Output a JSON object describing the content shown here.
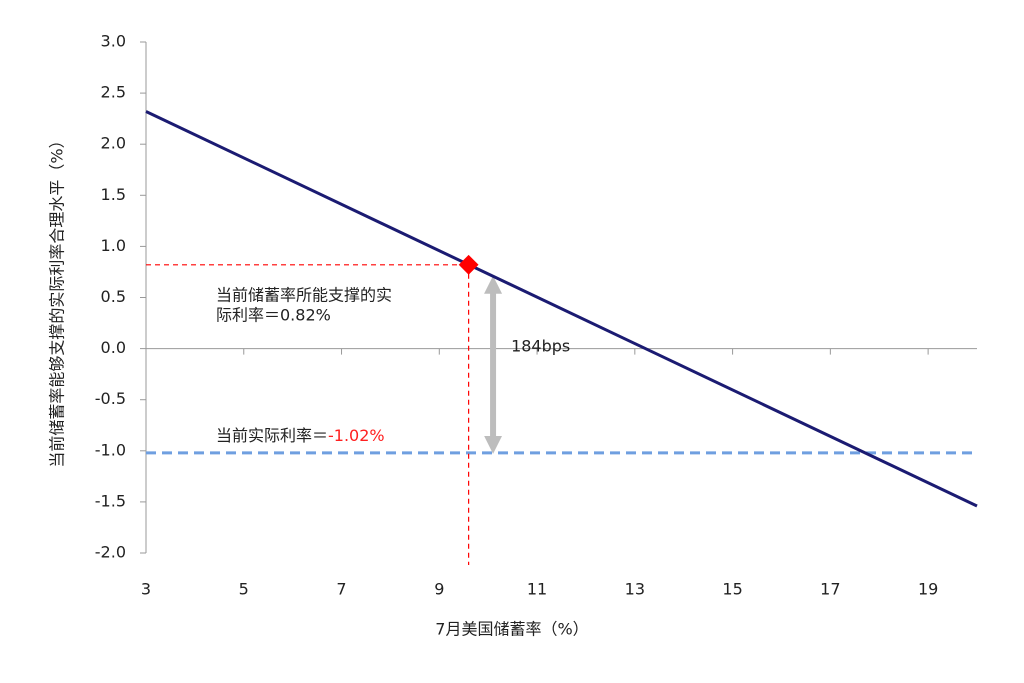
{
  "chart_data": {
    "type": "line",
    "x_label": "7月美国储蓄率（%）",
    "y_label": "当前储蓄率能够支撑的实际利率合理水平（%）",
    "xlim": [
      3,
      20
    ],
    "xticks": [
      3,
      5,
      7,
      9,
      11,
      13,
      15,
      17,
      19
    ],
    "ylim": [
      -2,
      3
    ],
    "yticks": [
      {
        "value": 3,
        "label": "3.0"
      },
      {
        "value": 2.5,
        "label": "2.5"
      },
      {
        "value": 2,
        "label": "2.0"
      },
      {
        "value": 1.5,
        "label": "1.5"
      },
      {
        "value": 1,
        "label": "1.0"
      },
      {
        "value": 0.5,
        "label": "0.5"
      },
      {
        "value": 0,
        "label": "0.0"
      },
      {
        "value": -0.5,
        "label": "-0.5"
      },
      {
        "value": -1,
        "label": "-1.0"
      },
      {
        "value": -1.5,
        "label": "-1.5"
      },
      {
        "value": -2,
        "label": "-2.0"
      }
    ],
    "series": [
      {
        "color": "#1b1b72",
        "x": [
          3,
          20
        ],
        "values": [
          2.32,
          -1.54
        ]
      }
    ],
    "marker": {
      "x": 9.6,
      "y": 0.82,
      "color": "#ff0000"
    },
    "reference_line": {
      "y": -1.02,
      "color": "#6f9fe0"
    },
    "arrow": {
      "x": 10.1,
      "y": [
        0.82,
        -1.02
      ],
      "label": "184bps",
      "color": "#bdbdbd"
    },
    "annotation_support": {
      "lines": [
        "当前储蓄率所能支撑的实",
        "际利率＝0.82%"
      ]
    },
    "annotation_current": {
      "text": "当前实际利率＝",
      "value_text": "-1.02%",
      "value_color": "#ff2020"
    }
  }
}
